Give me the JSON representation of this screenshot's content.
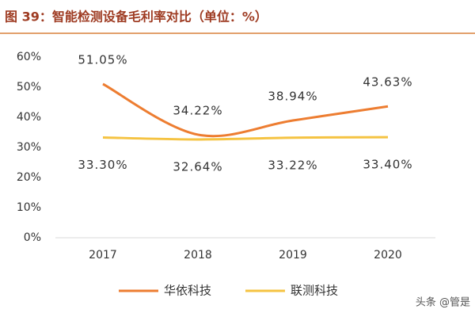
{
  "chart_data": {
    "type": "line",
    "title": "图 39：智能检测设备毛利率对比（单位：%）",
    "categories": [
      "2017",
      "2018",
      "2019",
      "2020"
    ],
    "series": [
      {
        "name": "华依科技",
        "color": "#ed7d31",
        "values": [
          51.05,
          34.22,
          38.94,
          43.63
        ],
        "value_labels": [
          "51.05%",
          "34.22%",
          "38.94%",
          "43.63%"
        ]
      },
      {
        "name": "联测科技",
        "color": "#f5c342",
        "values": [
          33.3,
          32.64,
          33.22,
          33.4
        ],
        "value_labels": [
          "33.30%",
          "32.64%",
          "33.22%",
          "33.40%"
        ]
      }
    ],
    "ylim": [
      0,
      60
    ],
    "yticks": [
      {
        "value": 0,
        "label": "0%"
      },
      {
        "value": 10,
        "label": "10%"
      },
      {
        "value": 20,
        "label": "20%"
      },
      {
        "value": 30,
        "label": "30%"
      },
      {
        "value": 40,
        "label": "40%"
      },
      {
        "value": 50,
        "label": "50%"
      },
      {
        "value": 60,
        "label": "60%"
      }
    ],
    "smooth": true,
    "grid": false,
    "legend": "bottom",
    "watermark": "头条 @管是"
  }
}
